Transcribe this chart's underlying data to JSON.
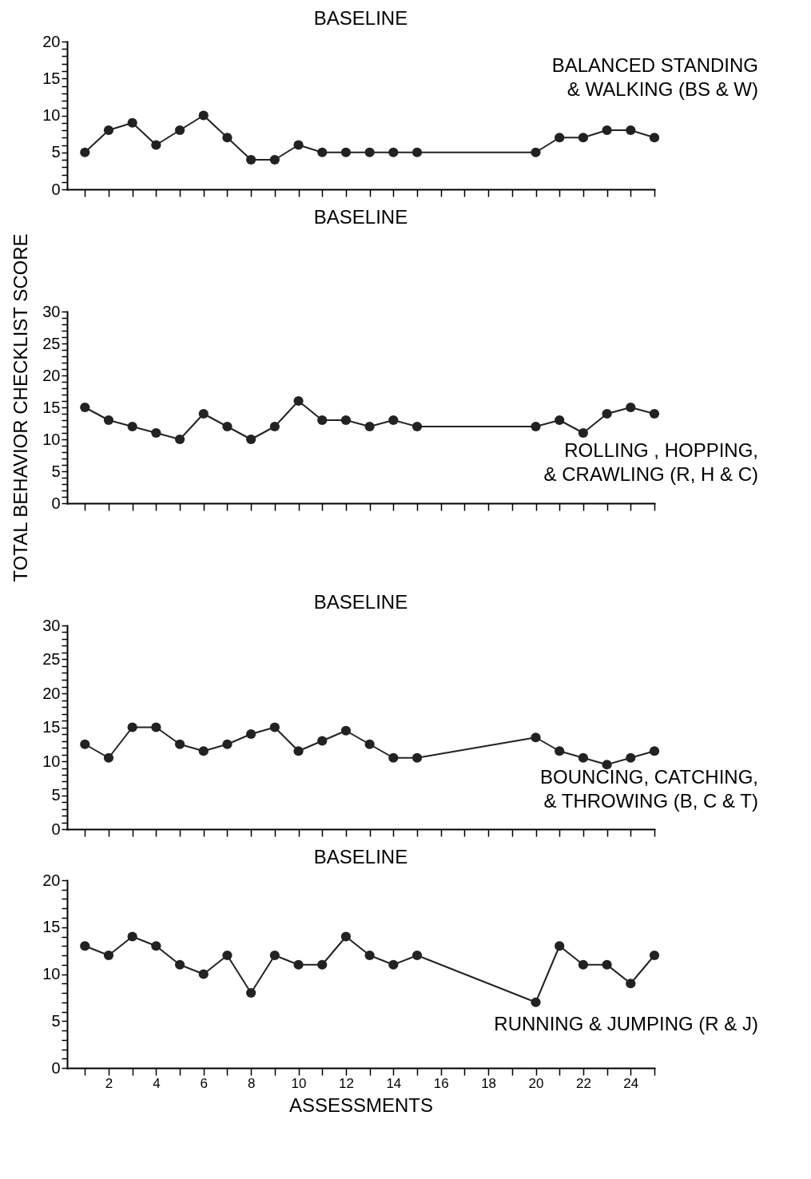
{
  "chart_data": [
    {
      "type": "line",
      "title": "BASELINE",
      "annotations": [
        "BALANCED STANDING\n& WALKING  (BS & W)"
      ],
      "x": [
        1,
        2,
        3,
        4,
        5,
        6,
        7,
        8,
        9,
        10,
        11,
        12,
        13,
        14,
        15,
        20,
        21,
        22,
        23,
        24,
        25
      ],
      "series": [
        {
          "color": "#222222",
          "values": [
            5,
            8,
            9,
            6,
            8,
            10,
            7,
            4,
            4,
            6,
            5,
            5,
            5,
            5,
            5,
            5,
            7,
            7,
            8,
            8,
            7
          ]
        }
      ],
      "xlim": [
        0.25,
        25
      ],
      "xticks": [
        {
          "value": 1,
          "label": null
        },
        2,
        {
          "value": 3,
          "label": null
        },
        4,
        {
          "value": 5,
          "label": null
        },
        6,
        {
          "value": 7,
          "label": null
        },
        8,
        {
          "value": 9,
          "label": null
        },
        10,
        {
          "value": 11,
          "label": null
        },
        12,
        {
          "value": 13,
          "label": null
        },
        14,
        {
          "value": 15,
          "label": null
        },
        16,
        {
          "value": 17,
          "label": null
        },
        18,
        {
          "value": 19,
          "label": null
        },
        20,
        {
          "value": 21,
          "label": null
        },
        22,
        {
          "value": 23,
          "label": null
        },
        24,
        {
          "value": 25,
          "label": null
        }
      ],
      "ylim": [
        0,
        20
      ],
      "yticks": [
        0,
        {
          "value": 1,
          "label": null
        },
        {
          "value": 2,
          "label": null
        },
        {
          "value": 3,
          "label": null
        },
        {
          "value": 4,
          "label": null
        },
        5,
        {
          "value": 6,
          "label": null
        },
        {
          "value": 7,
          "label": null
        },
        {
          "value": 8,
          "label": null
        },
        {
          "value": 9,
          "label": null
        },
        10,
        {
          "value": 11,
          "label": null
        },
        {
          "value": 12,
          "label": null
        },
        {
          "value": 13,
          "label": null
        },
        {
          "value": 14,
          "label": null
        },
        15,
        {
          "value": 16,
          "label": null
        },
        {
          "value": 17,
          "label": null
        },
        {
          "value": 18,
          "label": null
        },
        {
          "value": 19,
          "label": null
        },
        20
      ],
      "tick_labels": "y",
      "grid": false,
      "legend": false,
      "marker": "circle",
      "line_style": "solid"
    },
    {
      "type": "line",
      "title": "BASELINE",
      "ylabel": "TOTAL BEHAVIOR CHECKLIST SCORE",
      "annotations": [
        "ROLLING , HOPPING,\n& CRAWLING (R, H & C)"
      ],
      "x": [
        1,
        2,
        3,
        4,
        5,
        6,
        7,
        8,
        9,
        10,
        11,
        12,
        13,
        14,
        15,
        20,
        21,
        22,
        23,
        24,
        25
      ],
      "series": [
        {
          "color": "#222222",
          "values": [
            15,
            13,
            12,
            11,
            10,
            14,
            12,
            10,
            12,
            16,
            13,
            13,
            12,
            13,
            12,
            12,
            13,
            11,
            14,
            15,
            14
          ]
        }
      ],
      "xlim": [
        0.25,
        25
      ],
      "xticks": [
        {
          "value": 1,
          "label": null
        },
        2,
        {
          "value": 3,
          "label": null
        },
        4,
        {
          "value": 5,
          "label": null
        },
        6,
        {
          "value": 7,
          "label": null
        },
        8,
        {
          "value": 9,
          "label": null
        },
        10,
        {
          "value": 11,
          "label": null
        },
        12,
        {
          "value": 13,
          "label": null
        },
        14,
        {
          "value": 15,
          "label": null
        },
        16,
        {
          "value": 17,
          "label": null
        },
        18,
        {
          "value": 19,
          "label": null
        },
        20,
        {
          "value": 21,
          "label": null
        },
        22,
        {
          "value": 23,
          "label": null
        },
        24,
        {
          "value": 25,
          "label": null
        }
      ],
      "ylim": [
        0,
        30
      ],
      "yticks": [
        0,
        {
          "value": 1,
          "label": null
        },
        {
          "value": 2,
          "label": null
        },
        {
          "value": 3,
          "label": null
        },
        {
          "value": 4,
          "label": null
        },
        5,
        {
          "value": 6,
          "label": null
        },
        {
          "value": 7,
          "label": null
        },
        {
          "value": 8,
          "label": null
        },
        {
          "value": 9,
          "label": null
        },
        10,
        {
          "value": 11,
          "label": null
        },
        {
          "value": 12,
          "label": null
        },
        {
          "value": 13,
          "label": null
        },
        {
          "value": 14,
          "label": null
        },
        15,
        {
          "value": 16,
          "label": null
        },
        {
          "value": 17,
          "label": null
        },
        {
          "value": 18,
          "label": null
        },
        {
          "value": 19,
          "label": null
        },
        20,
        {
          "value": 21,
          "label": null
        },
        {
          "value": 22,
          "label": null
        },
        {
          "value": 23,
          "label": null
        },
        {
          "value": 24,
          "label": null
        },
        25,
        {
          "value": 26,
          "label": null
        },
        {
          "value": 27,
          "label": null
        },
        {
          "value": 28,
          "label": null
        },
        {
          "value": 29,
          "label": null
        },
        30
      ],
      "tick_labels": "y",
      "grid": false,
      "legend": false,
      "marker": "circle",
      "line_style": "solid"
    },
    {
      "type": "line",
      "title": "BASELINE",
      "annotations": [
        "BOUNCING, CATCHING,\n& THROWING (B, C & T)"
      ],
      "x": [
        1,
        2,
        3,
        4,
        5,
        6,
        7,
        8,
        9,
        10,
        11,
        12,
        13,
        14,
        15,
        20,
        21,
        22,
        23,
        24,
        25
      ],
      "series": [
        {
          "color": "#222222",
          "values": [
            12.5,
            10.5,
            15,
            15,
            12.5,
            11.5,
            12.5,
            14,
            15,
            11.5,
            13,
            14.5,
            12.5,
            10.5,
            10.5,
            13.5,
            11.5,
            10.5,
            9.5,
            10.5,
            11.5
          ]
        }
      ],
      "xlim": [
        0.25,
        25
      ],
      "xticks": [
        {
          "value": 1,
          "label": null
        },
        2,
        {
          "value": 3,
          "label": null
        },
        4,
        {
          "value": 5,
          "label": null
        },
        6,
        {
          "value": 7,
          "label": null
        },
        8,
        {
          "value": 9,
          "label": null
        },
        10,
        {
          "value": 11,
          "label": null
        },
        12,
        {
          "value": 13,
          "label": null
        },
        14,
        {
          "value": 15,
          "label": null
        },
        16,
        {
          "value": 17,
          "label": null
        },
        18,
        {
          "value": 19,
          "label": null
        },
        20,
        {
          "value": 21,
          "label": null
        },
        22,
        {
          "value": 23,
          "label": null
        },
        24,
        {
          "value": 25,
          "label": null
        }
      ],
      "ylim": [
        0,
        30
      ],
      "yticks": [
        0,
        {
          "value": 1,
          "label": null
        },
        {
          "value": 2,
          "label": null
        },
        {
          "value": 3,
          "label": null
        },
        {
          "value": 4,
          "label": null
        },
        5,
        {
          "value": 6,
          "label": null
        },
        {
          "value": 7,
          "label": null
        },
        {
          "value": 8,
          "label": null
        },
        {
          "value": 9,
          "label": null
        },
        10,
        {
          "value": 11,
          "label": null
        },
        {
          "value": 12,
          "label": null
        },
        {
          "value": 13,
          "label": null
        },
        {
          "value": 14,
          "label": null
        },
        15,
        {
          "value": 16,
          "label": null
        },
        {
          "value": 17,
          "label": null
        },
        {
          "value": 18,
          "label": null
        },
        {
          "value": 19,
          "label": null
        },
        20,
        {
          "value": 21,
          "label": null
        },
        {
          "value": 22,
          "label": null
        },
        {
          "value": 23,
          "label": null
        },
        {
          "value": 24,
          "label": null
        },
        25,
        {
          "value": 26,
          "label": null
        },
        {
          "value": 27,
          "label": null
        },
        {
          "value": 28,
          "label": null
        },
        {
          "value": 29,
          "label": null
        },
        30
      ],
      "tick_labels": "y",
      "grid": false,
      "legend": false,
      "marker": "circle",
      "line_style": "solid"
    },
    {
      "type": "line",
      "title": "BASELINE",
      "xlabel": "ASSESSMENTS",
      "annotations": [
        "RUNNING & JUMPING (R & J)"
      ],
      "x": [
        1,
        2,
        3,
        4,
        5,
        6,
        7,
        8,
        9,
        10,
        11,
        12,
        13,
        14,
        15,
        20,
        21,
        22,
        23,
        24,
        25
      ],
      "series": [
        {
          "color": "#222222",
          "values": [
            13,
            12,
            14,
            13,
            11,
            10,
            12,
            8,
            12,
            11,
            11,
            14,
            12,
            11,
            12,
            7,
            13,
            11,
            11,
            9,
            12
          ]
        }
      ],
      "xlim": [
        0.25,
        25
      ],
      "xticks": [
        {
          "value": 1,
          "label": null
        },
        2,
        {
          "value": 3,
          "label": null
        },
        4,
        {
          "value": 5,
          "label": null
        },
        6,
        {
          "value": 7,
          "label": null
        },
        8,
        {
          "value": 9,
          "label": null
        },
        10,
        {
          "value": 11,
          "label": null
        },
        12,
        {
          "value": 13,
          "label": null
        },
        14,
        {
          "value": 15,
          "label": null
        },
        16,
        {
          "value": 17,
          "label": null
        },
        18,
        {
          "value": 19,
          "label": null
        },
        20,
        {
          "value": 21,
          "label": null
        },
        22,
        {
          "value": 23,
          "label": null
        },
        24,
        {
          "value": 25,
          "label": null
        }
      ],
      "ylim": [
        0,
        20
      ],
      "yticks": [
        0,
        {
          "value": 1,
          "label": null
        },
        {
          "value": 2,
          "label": null
        },
        {
          "value": 3,
          "label": null
        },
        {
          "value": 4,
          "label": null
        },
        5,
        {
          "value": 6,
          "label": null
        },
        {
          "value": 7,
          "label": null
        },
        {
          "value": 8,
          "label": null
        },
        {
          "value": 9,
          "label": null
        },
        10,
        {
          "value": 11,
          "label": null
        },
        {
          "value": 12,
          "label": null
        },
        {
          "value": 13,
          "label": null
        },
        {
          "value": 14,
          "label": null
        },
        15,
        {
          "value": 16,
          "label": null
        },
        {
          "value": 17,
          "label": null
        },
        {
          "value": 18,
          "label": null
        },
        {
          "value": 19,
          "label": null
        },
        20
      ],
      "grid": false,
      "legend": false,
      "marker": "circle",
      "line_style": "solid"
    }
  ]
}
